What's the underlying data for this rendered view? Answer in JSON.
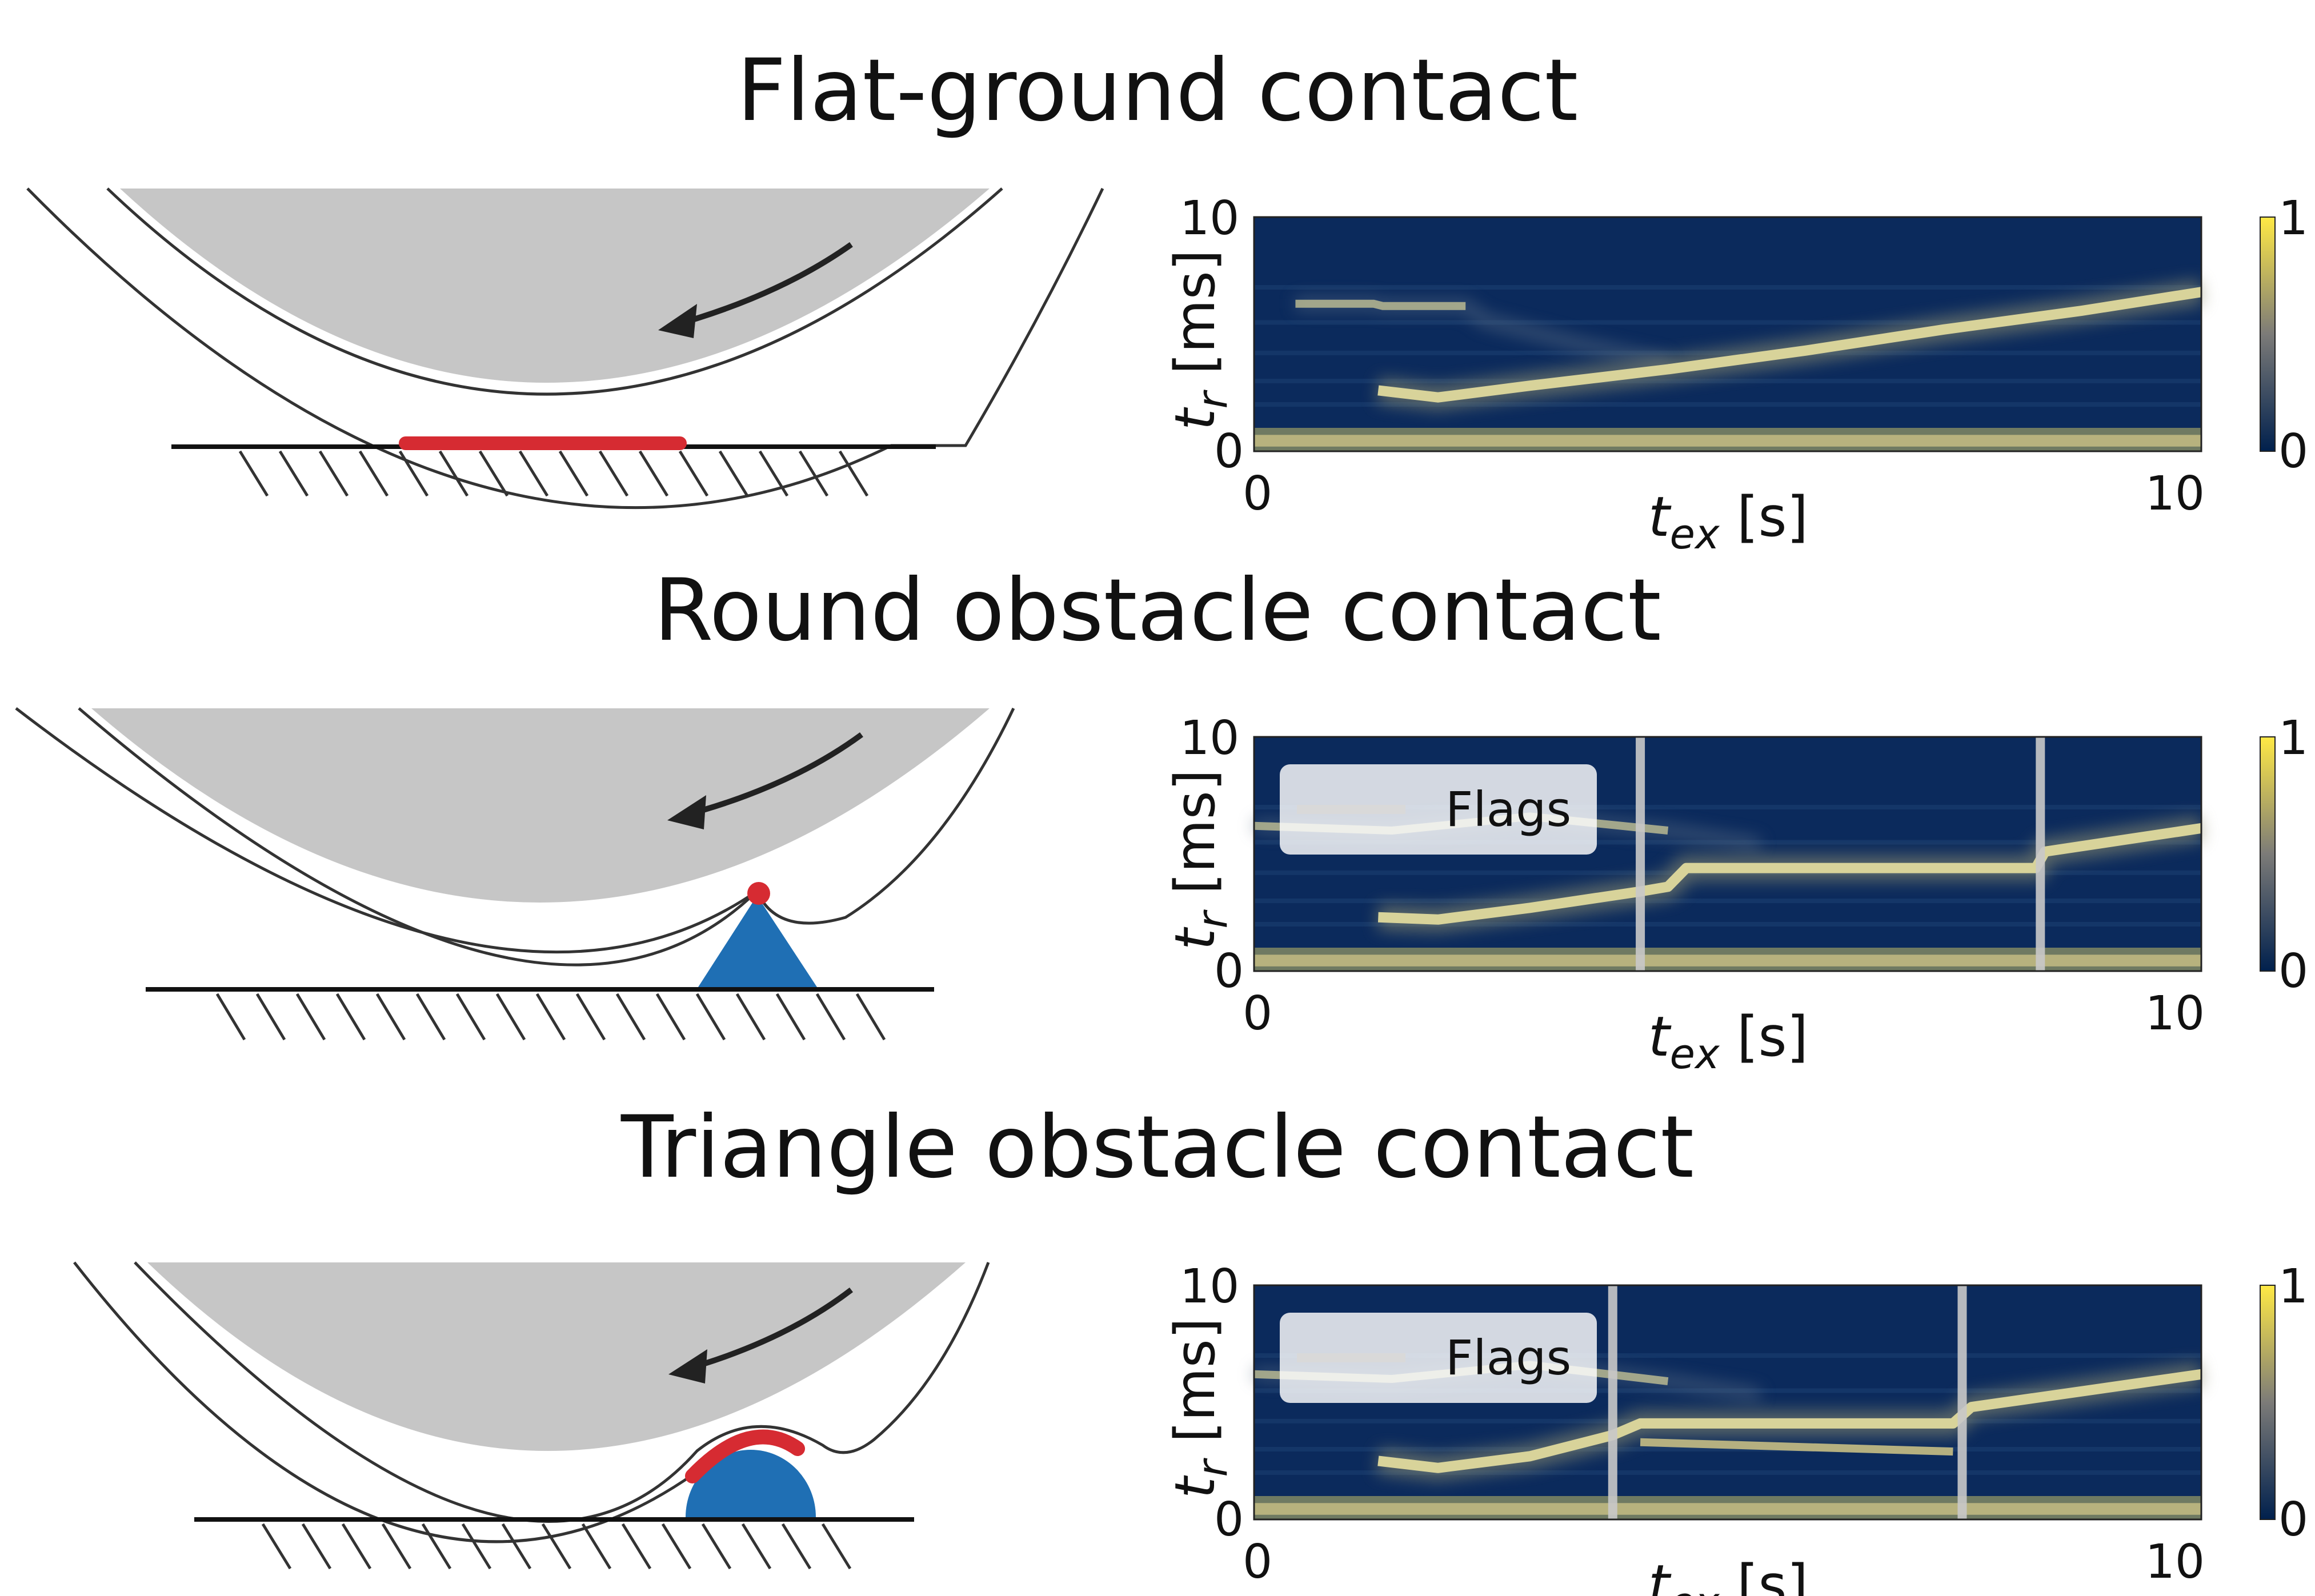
{
  "panels": [
    {
      "title": "Flat-ground contact",
      "chart": {
        "type": "heatmap",
        "xlabel_sym": "t",
        "xlabel_sub": "ex",
        "xlabel_unit": " [s]",
        "ylabel_sym": "t",
        "ylabel_sub": "r",
        "ylabel_unit": " [ms]",
        "xlim": [
          0,
          10.3
        ],
        "ylim": [
          0,
          10
        ],
        "xticks": [
          "0",
          "10"
        ],
        "yticks": [
          "0",
          "10"
        ],
        "colorbar": {
          "min": "0",
          "max": "1"
        },
        "legend": null,
        "flags_x": [],
        "ridge": [
          [
            0.45,
            6.3
          ],
          [
            1.3,
            6.3
          ],
          [
            1.4,
            6.2
          ],
          [
            2.3,
            6.2
          ],
          [
            2.5,
            5.6
          ],
          [
            3.5,
            4.6
          ],
          [
            4.5,
            3.8
          ]
        ],
        "bright_track": [
          [
            1.35,
            2.6
          ],
          [
            2.0,
            2.3
          ],
          [
            3.0,
            2.8
          ],
          [
            4.5,
            3.5
          ],
          [
            6.0,
            4.3
          ],
          [
            7.5,
            5.2
          ],
          [
            9.0,
            6.0
          ],
          [
            10.3,
            6.8
          ]
        ]
      }
    },
    {
      "title": "Round obstacle contact",
      "chart": {
        "type": "heatmap",
        "xlabel_sym": "t",
        "xlabel_sub": "ex",
        "xlabel_unit": " [s]",
        "ylabel_sym": "t",
        "ylabel_sub": "r",
        "ylabel_unit": " [ms]",
        "xlim": [
          0,
          10.3
        ],
        "ylim": [
          0,
          10
        ],
        "xticks": [
          "0",
          "10"
        ],
        "yticks": [
          "0",
          "10"
        ],
        "colorbar": {
          "min": "0",
          "max": "1"
        },
        "legend": {
          "label": "Flags",
          "placement": "top-left"
        },
        "flags_x": [
          4.2,
          8.55
        ],
        "ridge": [
          [
            0.0,
            6.2
          ],
          [
            1.5,
            6.0
          ],
          [
            3.0,
            6.6
          ],
          [
            4.5,
            6.0
          ],
          [
            5.5,
            5.4
          ]
        ],
        "bright_track": [
          [
            1.35,
            2.3
          ],
          [
            2.0,
            2.2
          ],
          [
            3.0,
            2.7
          ],
          [
            4.2,
            3.4
          ],
          [
            4.5,
            3.6
          ],
          [
            4.7,
            4.4
          ],
          [
            8.0,
            4.4
          ],
          [
            8.5,
            4.4
          ],
          [
            8.6,
            5.1
          ],
          [
            10.3,
            6.1
          ]
        ]
      }
    },
    {
      "title": "Triangle obstacle contact",
      "chart": {
        "type": "heatmap",
        "xlabel_sym": "t",
        "xlabel_sub": "ex",
        "xlabel_unit": " [s]",
        "ylabel_sym": "t",
        "ylabel_sub": "r",
        "ylabel_unit": " [ms]",
        "xlim": [
          0,
          10.3
        ],
        "ylim": [
          0,
          10
        ],
        "xticks": [
          "0",
          "10"
        ],
        "yticks": [
          "0",
          "10"
        ],
        "colorbar": {
          "min": "0",
          "max": "1"
        },
        "legend": {
          "label": "Flags",
          "placement": "top-left"
        },
        "flags_x": [
          3.9,
          7.7
        ],
        "ridge": [
          [
            0.0,
            6.2
          ],
          [
            1.5,
            6.0
          ],
          [
            3.0,
            6.6
          ],
          [
            4.5,
            5.9
          ],
          [
            5.5,
            5.3
          ]
        ],
        "bright_track": [
          [
            1.35,
            2.5
          ],
          [
            2.0,
            2.2
          ],
          [
            3.0,
            2.7
          ],
          [
            3.9,
            3.6
          ],
          [
            4.2,
            4.1
          ],
          [
            7.6,
            4.1
          ],
          [
            7.8,
            4.8
          ],
          [
            10.3,
            6.2
          ]
        ],
        "second_track": [
          [
            4.2,
            3.3
          ],
          [
            7.6,
            2.9
          ]
        ]
      }
    }
  ],
  "colors": {
    "heat_bg": "#0b2a5c",
    "bright": "#d8d39a",
    "flag": "#c9c9c9",
    "tire_fill": "#c6c6c6",
    "contact_red": "#d62b32",
    "obstacle_blue": "#1f6fb4"
  }
}
